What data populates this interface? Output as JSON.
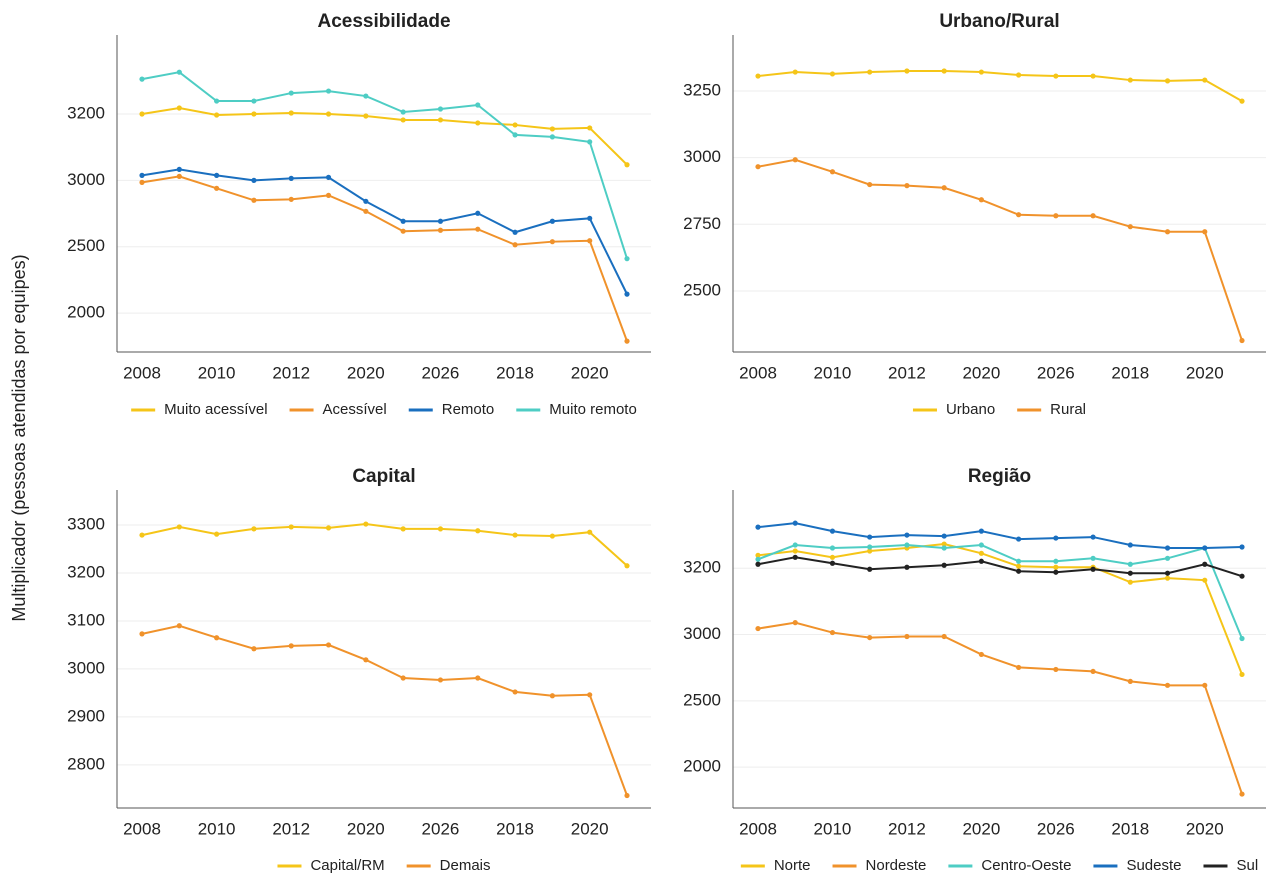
{
  "ylabel": "Multiplicador (pessoas atendidas por equipes)",
  "chart_data": [
    {
      "type": "line",
      "title": "Acessibilidade",
      "yscale": "tick-spaced",
      "grid": true,
      "legend": "bottom",
      "categories": [
        "2008",
        null,
        "2010",
        null,
        "2012",
        null,
        "2020",
        null,
        "2026",
        null,
        "2018",
        null,
        "2020",
        null
      ],
      "ylim": [
        1707,
        3438
      ],
      "yticks": [
        2000,
        2500,
        3000,
        3200
      ],
      "series": [
        {
          "name": "Muito acessível",
          "color": "#f5c518",
          "values": [
            3200,
            3218,
            3197,
            3200,
            3203,
            3200,
            3194,
            3182,
            3182,
            3173,
            3167,
            3155,
            3158,
            3047
          ]
        },
        {
          "name": "Acessível",
          "color": "#f0922b",
          "values": [
            2985,
            3012,
            2940,
            2850,
            2857,
            2887,
            2767,
            2617,
            2624,
            2632,
            2515,
            2538,
            2545,
            1789
          ]
        },
        {
          "name": "Remoto",
          "color": "#1a6fbf",
          "values": [
            3015,
            3033,
            3015,
            3000,
            3006,
            3009,
            2842,
            2692,
            2692,
            2752,
            2609,
            2692,
            2714,
            2143
          ]
        },
        {
          "name": "Muito remoto",
          "color": "#4ecdc4",
          "values": [
            3305,
            3326,
            3239,
            3239,
            3263,
            3269,
            3254,
            3206,
            3215,
            3227,
            3137,
            3131,
            3116,
            2410
          ]
        }
      ]
    },
    {
      "type": "line",
      "title": "Urbano/Rural",
      "yscale": "linear",
      "grid": true,
      "legend": "bottom",
      "categories": [
        "2008",
        null,
        "2010",
        null,
        "2012",
        null,
        "2020",
        null,
        "2026",
        null,
        "2018",
        null,
        "2020",
        null
      ],
      "ylim": [
        2271,
        3460
      ],
      "yticks": [
        2500,
        2750,
        3000,
        3250
      ],
      "series": [
        {
          "name": "Urbano",
          "color": "#f5c518",
          "values": [
            3306,
            3321,
            3314,
            3321,
            3325,
            3325,
            3321,
            3310,
            3306,
            3306,
            3291,
            3288,
            3291,
            3212
          ]
        },
        {
          "name": "Rural",
          "color": "#f0922b",
          "values": [
            2966,
            2992,
            2947,
            2899,
            2895,
            2887,
            2842,
            2786,
            2782,
            2782,
            2741,
            2722,
            2722,
            2314
          ]
        }
      ]
    },
    {
      "type": "line",
      "title": "Capital",
      "yscale": "linear",
      "grid": true,
      "legend": "bottom",
      "categories": [
        "2008",
        null,
        "2010",
        null,
        "2012",
        null,
        "2020",
        null,
        "2026",
        null,
        "2018",
        null,
        "2020",
        null
      ],
      "ylim": [
        2710,
        3373
      ],
      "yticks": [
        2800,
        2900,
        3000,
        3100,
        3200,
        3300
      ],
      "series": [
        {
          "name": "Capital/RM",
          "color": "#f5c518",
          "values": [
            3279,
            3296,
            3281,
            3292,
            3296,
            3294,
            3302,
            3292,
            3292,
            3288,
            3279,
            3277,
            3285,
            3215
          ]
        },
        {
          "name": "Demais",
          "color": "#f0922b",
          "values": [
            3073,
            3090,
            3065,
            3042,
            3048,
            3050,
            3019,
            2981,
            2977,
            2981,
            2952,
            2944,
            2946,
            2736
          ]
        }
      ]
    },
    {
      "type": "line",
      "title": "Região",
      "yscale": "tick-spaced",
      "grid": true,
      "legend": "bottom",
      "categories": [
        "2008",
        null,
        "2010",
        null,
        "2012",
        null,
        "2020",
        null,
        "2026",
        null,
        "2018",
        null,
        "2020",
        null
      ],
      "ylim": [
        1692,
        3436
      ],
      "yticks": [
        2000,
        2500,
        3000,
        3200
      ],
      "series": [
        {
          "name": "Norte",
          "color": "#f5c518",
          "values": [
            3239,
            3252,
            3233,
            3252,
            3261,
            3273,
            3245,
            3206,
            3203,
            3203,
            3158,
            3170,
            3164,
            2699
          ]
        },
        {
          "name": "Nordeste",
          "color": "#f0922b",
          "values": [
            3018,
            3036,
            3006,
            2977,
            2985,
            2985,
            2850,
            2752,
            2737,
            2722,
            2647,
            2617,
            2617,
            1797
          ]
        },
        {
          "name": "Centro-Oeste",
          "color": "#4ecdc4",
          "values": [
            3227,
            3270,
            3261,
            3264,
            3270,
            3261,
            3270,
            3221,
            3221,
            3230,
            3212,
            3230,
            3261,
            2970
          ]
        },
        {
          "name": "Sudeste",
          "color": "#1a6fbf",
          "values": [
            3324,
            3336,
            3312,
            3294,
            3300,
            3297,
            3312,
            3288,
            3291,
            3294,
            3270,
            3261,
            3261,
            3264
          ]
        },
        {
          "name": "Sul",
          "color": "#222222",
          "values": [
            3212,
            3233,
            3215,
            3197,
            3203,
            3209,
            3221,
            3191,
            3188,
            3197,
            3185,
            3185,
            3212,
            3176
          ]
        }
      ]
    }
  ]
}
